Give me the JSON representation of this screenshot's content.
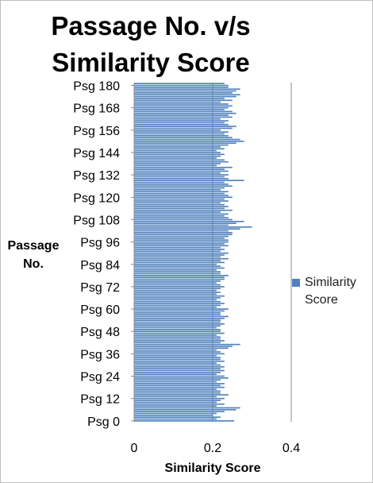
{
  "chart_data": {
    "type": "bar",
    "orientation": "horizontal",
    "title_lines": [
      "Passage No. v/s",
      "Similarity Score"
    ],
    "xlabel": "Similarity Score",
    "ylabel_lines": [
      "Passage",
      "No."
    ],
    "xlim": [
      0,
      0.4
    ],
    "x_ticks": [
      "0",
      "0.2",
      "0.4"
    ],
    "y_tick_labels": [
      "Psg 0",
      "Psg 12",
      "Psg 24",
      "Psg 36",
      "Psg 48",
      "Psg 60",
      "Psg 72",
      "Psg 84",
      "Psg 96",
      "Psg 108",
      "Psg 120",
      "Psg 132",
      "Psg 144",
      "Psg 156",
      "Psg 168",
      "Psg 180"
    ],
    "grid": "vertical major gridlines",
    "legend": "right",
    "series": [
      {
        "name": "Similarity Score",
        "color": "#4f81bd",
        "categories_from": 0,
        "categories_to": 181,
        "values": [
          0.255,
          0.21,
          0.22,
          0.2,
          0.21,
          0.23,
          0.26,
          0.27,
          0.21,
          0.23,
          0.21,
          0.22,
          0.23,
          0.21,
          0.24,
          0.22,
          0.22,
          0.21,
          0.23,
          0.22,
          0.23,
          0.21,
          0.22,
          0.24,
          0.23,
          0.21,
          0.22,
          0.23,
          0.22,
          0.23,
          0.22,
          0.21,
          0.23,
          0.22,
          0.22,
          0.21,
          0.23,
          0.22,
          0.21,
          0.24,
          0.25,
          0.27,
          0.22,
          0.23,
          0.22,
          0.22,
          0.21,
          0.23,
          0.22,
          0.22,
          0.21,
          0.22,
          0.23,
          0.22,
          0.22,
          0.23,
          0.24,
          0.22,
          0.22,
          0.23,
          0.24,
          0.21,
          0.22,
          0.23,
          0.22,
          0.21,
          0.22,
          0.23,
          0.21,
          0.22,
          0.21,
          0.22,
          0.23,
          0.22,
          0.21,
          0.22,
          0.23,
          0.23,
          0.24,
          0.22,
          0.22,
          0.21,
          0.23,
          0.22,
          0.21,
          0.23,
          0.22,
          0.24,
          0.22,
          0.23,
          0.24,
          0.22,
          0.23,
          0.22,
          0.24,
          0.23,
          0.24,
          0.24,
          0.23,
          0.24,
          0.25,
          0.25,
          0.24,
          0.27,
          0.3,
          0.24,
          0.26,
          0.28,
          0.25,
          0.24,
          0.23,
          0.24,
          0.22,
          0.25,
          0.23,
          0.24,
          0.23,
          0.22,
          0.24,
          0.23,
          0.25,
          0.24,
          0.23,
          0.24,
          0.22,
          0.23,
          0.25,
          0.24,
          0.23,
          0.28,
          0.24,
          0.23,
          0.24,
          0.22,
          0.24,
          0.23,
          0.25,
          0.21,
          0.22,
          0.24,
          0.23,
          0.21,
          0.22,
          0.23,
          0.22,
          0.21,
          0.23,
          0.22,
          0.24,
          0.26,
          0.28,
          0.27,
          0.25,
          0.24,
          0.23,
          0.24,
          0.22,
          0.25,
          0.26,
          0.24,
          0.23,
          0.24,
          0.22,
          0.25,
          0.24,
          0.26,
          0.25,
          0.23,
          0.24,
          0.25,
          0.24,
          0.22,
          0.25,
          0.23,
          0.26,
          0.27,
          0.25,
          0.26,
          0.27,
          0.24,
          0.24,
          0.23
        ]
      }
    ]
  },
  "legend": {
    "label": "Similarity Score"
  }
}
